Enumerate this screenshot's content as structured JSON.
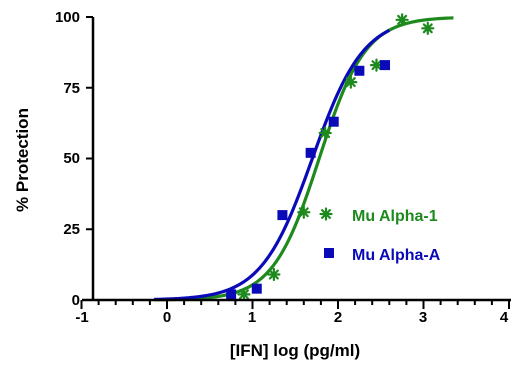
{
  "chart_data": {
    "type": "scatter",
    "xlabel": "[IFN] log (pg/ml)",
    "ylabel": "% Protection",
    "xlim": [
      -1,
      4
    ],
    "ylim": [
      0,
      100
    ],
    "x_ticks": [
      "-1",
      "0",
      "1",
      "2",
      "3",
      "4"
    ],
    "y_ticks": [
      "0",
      "25",
      "50",
      "75",
      "100"
    ],
    "grid": false,
    "legend_position": "center-right",
    "series": [
      {
        "name": "Mu Alpha-1",
        "color": "#1e8a1e",
        "marker": "asterisk",
        "points": [
          {
            "x": 0.9,
            "y": 2
          },
          {
            "x": 1.25,
            "y": 9
          },
          {
            "x": 1.6,
            "y": 31
          },
          {
            "x": 1.85,
            "y": 59
          },
          {
            "x": 2.15,
            "y": 77
          },
          {
            "x": 2.45,
            "y": 83
          },
          {
            "x": 2.75,
            "y": 99
          },
          {
            "x": 3.05,
            "y": 96
          }
        ],
        "fit": {
          "type": "sigmoid",
          "bottom": 0,
          "top": 100,
          "ec50": 1.78,
          "hill": 1.6,
          "x_range": [
            -0.15,
            3.35
          ]
        }
      },
      {
        "name": "Mu Alpha-A",
        "color": "#0a0ab8",
        "marker": "square",
        "points": [
          {
            "x": 0.75,
            "y": 2
          },
          {
            "x": 1.05,
            "y": 4
          },
          {
            "x": 1.35,
            "y": 30
          },
          {
            "x": 1.68,
            "y": 52
          },
          {
            "x": 1.95,
            "y": 63
          },
          {
            "x": 2.25,
            "y": 81
          },
          {
            "x": 2.55,
            "y": 83
          }
        ],
        "fit": {
          "type": "sigmoid",
          "bottom": 0,
          "top": 100,
          "ec50": 1.7,
          "hill": 1.45,
          "x_range": [
            -0.15,
            2.6
          ]
        }
      }
    ]
  }
}
